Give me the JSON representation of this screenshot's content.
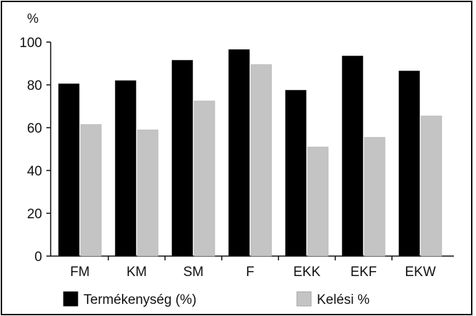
{
  "chart_data": {
    "type": "bar",
    "unit_label": "%",
    "categories": [
      "FM",
      "KM",
      "SM",
      "F",
      "EKK",
      "EKF",
      "EKW"
    ],
    "yticks": [
      "0",
      "20",
      "40",
      "60",
      "80",
      "100"
    ],
    "ylim": [
      0,
      100
    ],
    "grid": false,
    "legend_position": "bottom",
    "series": [
      {
        "name": "Termékenység (%)",
        "color": "#000000",
        "values": [
          80.5,
          82,
          91.5,
          96.5,
          77.5,
          93.5,
          86.5
        ]
      },
      {
        "name": "Kelési %",
        "color": "#c4c4c4",
        "values": [
          61.5,
          59,
          72.5,
          89.5,
          51,
          55.5,
          65.5
        ]
      }
    ]
  }
}
